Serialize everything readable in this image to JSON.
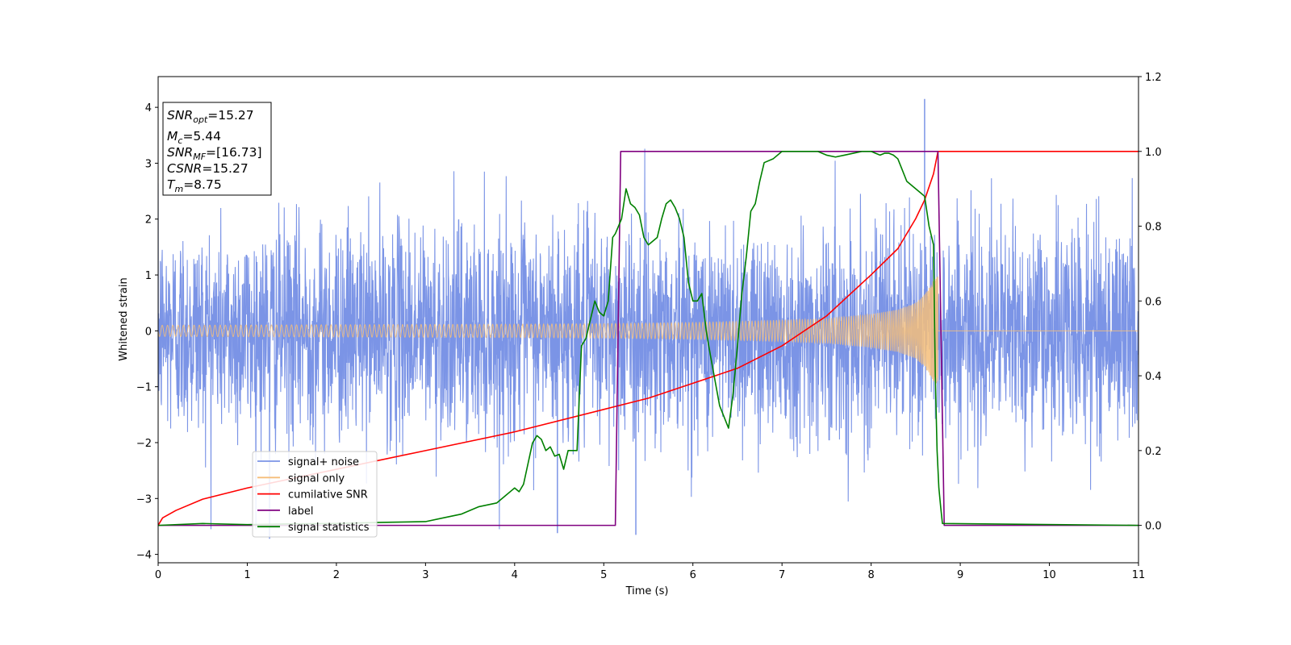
{
  "chart_data": {
    "type": "line",
    "xlabel": "Time (s)",
    "ylabel": "Whitened strain",
    "xlim": [
      0,
      11
    ],
    "ylim_left": [
      -4.15,
      4.55
    ],
    "ylim_right": [
      -0.1,
      1.2
    ],
    "x_ticks": [
      "0",
      "1",
      "2",
      "3",
      "4",
      "5",
      "6",
      "7",
      "8",
      "9",
      "10",
      "11"
    ],
    "y_ticks_left": [
      "−4",
      "−3",
      "−2",
      "−1",
      "0",
      "1",
      "2",
      "3",
      "4"
    ],
    "y_ticks_right": [
      "0.0",
      "0.2",
      "0.4",
      "0.6",
      "0.8",
      "1.0",
      "1.2"
    ],
    "grid": false,
    "legend_position": "lower-left",
    "info_box": [
      {
        "name": "SNR",
        "sub": "opt",
        "value": "=15.27"
      },
      {
        "name": "M",
        "sub": "c",
        "value": "=5.44"
      },
      {
        "name": "SNR",
        "sub": "MF",
        "value": "=[16.73]"
      },
      {
        "name": "CSNR",
        "sub": "",
        "value": "=15.27"
      },
      {
        "name": "T",
        "sub": "m",
        "value": "=8.75"
      }
    ],
    "series": [
      {
        "name": "signal+ noise",
        "color": "#7b94e6",
        "axis": "left",
        "description": "dense noisy strain, roughly ±2.5 (peaks to ±3.5) across 0–11 s",
        "approx_band": [
          -2.4,
          2.4
        ],
        "notable_peaks": [
          [
            8.6,
            4.15
          ],
          [
            5.36,
            -3.65
          ],
          [
            1.25,
            -3.72
          ],
          [
            4.48,
            -3.62
          ]
        ]
      },
      {
        "name": "signal only",
        "color": "#f5be7a",
        "axis": "left",
        "envelope_x": [
          0,
          2,
          4,
          5,
          6,
          7,
          7.5,
          8,
          8.3,
          8.5,
          8.6,
          8.7,
          8.75
        ],
        "envelope_amp": [
          0.1,
          0.11,
          0.12,
          0.13,
          0.15,
          0.19,
          0.22,
          0.3,
          0.38,
          0.5,
          0.65,
          0.9,
          0.98
        ],
        "after_merger": 0
      },
      {
        "name": "cumilative SNR",
        "color": "#ff0000",
        "axis": "right",
        "x": [
          0,
          0.05,
          0.2,
          0.5,
          1,
          2,
          3,
          4,
          5,
          5.5,
          6,
          6.5,
          7,
          7.5,
          8,
          8.3,
          8.5,
          8.6,
          8.7,
          8.75,
          11
        ],
        "y": [
          0,
          0.02,
          0.04,
          0.07,
          0.1,
          0.15,
          0.2,
          0.25,
          0.31,
          0.34,
          0.38,
          0.42,
          0.48,
          0.56,
          0.67,
          0.74,
          0.82,
          0.87,
          0.94,
          1.0,
          1.0
        ]
      },
      {
        "name": "label",
        "color": "#800080",
        "axis": "right",
        "x": [
          0,
          5.13,
          5.19,
          8.75,
          8.82,
          11
        ],
        "y": [
          0,
          0,
          1,
          1,
          0,
          0
        ]
      },
      {
        "name": "signal statistics",
        "color": "#008000",
        "axis": "right",
        "x": [
          0,
          0.5,
          1,
          1.5,
          2,
          2.5,
          3,
          3.2,
          3.4,
          3.6,
          3.8,
          3.9,
          4,
          4.05,
          4.1,
          4.2,
          4.25,
          4.3,
          4.35,
          4.4,
          4.45,
          4.5,
          4.55,
          4.6,
          4.7,
          4.75,
          4.8,
          4.85,
          4.9,
          4.95,
          5,
          5.05,
          5.1,
          5.13,
          5.2,
          5.25,
          5.3,
          5.35,
          5.4,
          5.45,
          5.5,
          5.6,
          5.65,
          5.7,
          5.75,
          5.8,
          5.85,
          5.9,
          5.95,
          6,
          6.05,
          6.1,
          6.15,
          6.2,
          6.3,
          6.4,
          6.45,
          6.5,
          6.55,
          6.6,
          6.65,
          6.7,
          6.75,
          6.8,
          6.9,
          7,
          7.1,
          7.2,
          7.3,
          7.4,
          7.5,
          7.6,
          7.7,
          7.8,
          7.9,
          8,
          8.05,
          8.1,
          8.15,
          8.2,
          8.25,
          8.3,
          8.35,
          8.4,
          8.45,
          8.5,
          8.55,
          8.6,
          8.65,
          8.7,
          8.72,
          8.74,
          8.76,
          8.78,
          8.8,
          11
        ],
        "y": [
          0,
          0.005,
          0.002,
          0.004,
          0.005,
          0.008,
          0.01,
          0.02,
          0.03,
          0.05,
          0.06,
          0.08,
          0.1,
          0.09,
          0.11,
          0.22,
          0.24,
          0.23,
          0.2,
          0.21,
          0.185,
          0.19,
          0.15,
          0.2,
          0.2,
          0.48,
          0.5,
          0.55,
          0.6,
          0.57,
          0.56,
          0.6,
          0.77,
          0.78,
          0.82,
          0.9,
          0.86,
          0.85,
          0.83,
          0.77,
          0.75,
          0.77,
          0.82,
          0.86,
          0.87,
          0.85,
          0.82,
          0.77,
          0.65,
          0.6,
          0.6,
          0.62,
          0.52,
          0.45,
          0.32,
          0.26,
          0.35,
          0.48,
          0.62,
          0.72,
          0.84,
          0.86,
          0.92,
          0.97,
          0.98,
          1.0,
          1.0,
          1.0,
          1.0,
          1.0,
          0.99,
          0.985,
          0.99,
          0.995,
          1.0,
          1.0,
          0.995,
          0.99,
          0.995,
          0.995,
          0.99,
          0.98,
          0.95,
          0.92,
          0.91,
          0.9,
          0.89,
          0.88,
          0.8,
          0.75,
          0.4,
          0.2,
          0.1,
          0.05,
          0.005,
          0.0
        ]
      }
    ]
  }
}
